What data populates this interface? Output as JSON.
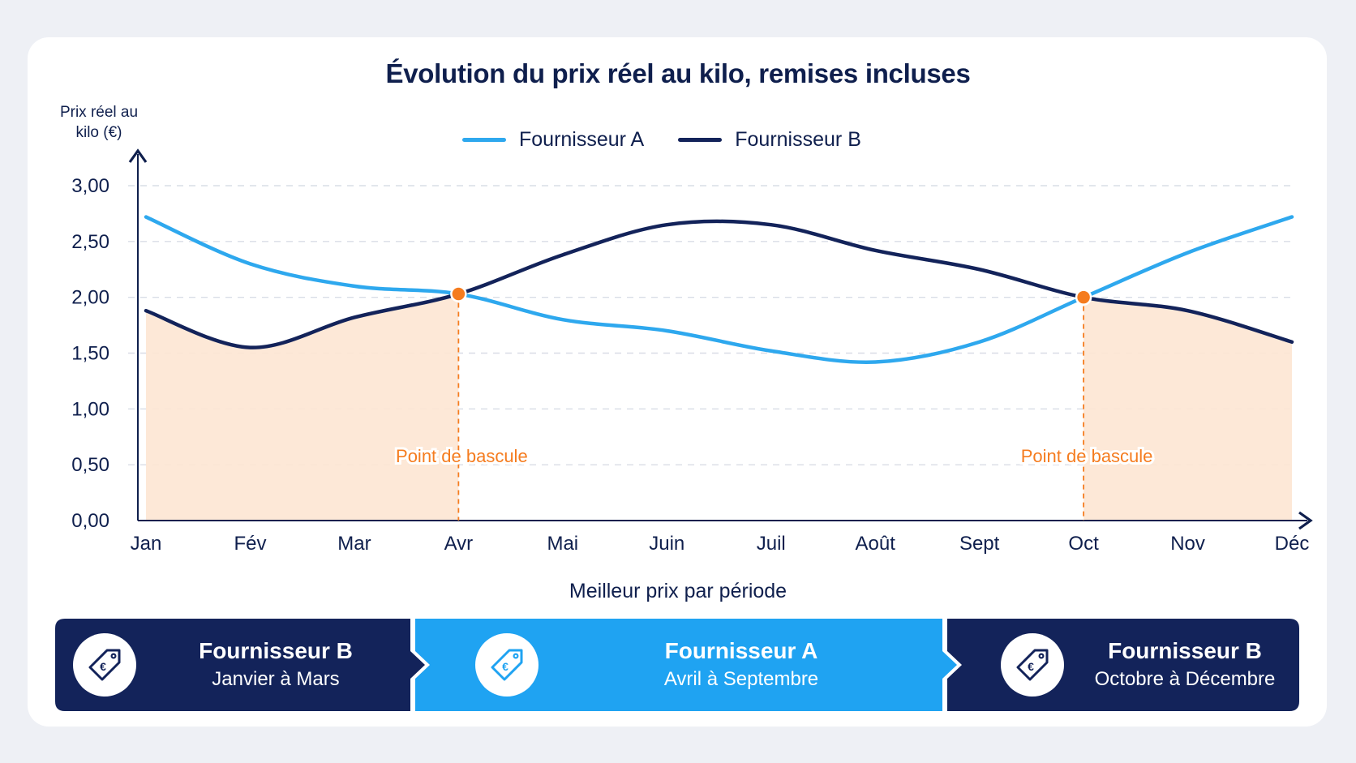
{
  "colors": {
    "supplier_a": "#2ea8ee",
    "supplier_b": "#13235a",
    "highlight": "#f57c1f",
    "fill": "#fde5d3",
    "grid": "#d9dde6"
  },
  "chart_data": {
    "type": "line",
    "title": "Évolution du prix réel au kilo, remises incluses",
    "ylabel": "Prix réel au kilo (€)",
    "xlabel": "",
    "categories": [
      "Jan",
      "Fév",
      "Mar",
      "Avr",
      "Mai",
      "Juin",
      "Juil",
      "Août",
      "Sept",
      "Oct",
      "Nov",
      "Déc"
    ],
    "y_ticks": [
      "0,00",
      "0,50",
      "1,00",
      "1,50",
      "2,00",
      "2,50",
      "3,00"
    ],
    "ylim": [
      0,
      3
    ],
    "grid": true,
    "legend_position": "top",
    "series": [
      {
        "name": "Fournisseur A",
        "values": [
          2.72,
          2.3,
          2.1,
          2.03,
          1.8,
          1.7,
          1.52,
          1.42,
          1.6,
          2.0,
          2.4,
          2.72
        ]
      },
      {
        "name": "Fournisseur B",
        "values": [
          1.88,
          1.55,
          1.82,
          2.03,
          2.38,
          2.65,
          2.65,
          2.42,
          2.25,
          2.0,
          1.88,
          1.6
        ]
      }
    ],
    "crossovers": [
      {
        "x": "Avr",
        "y": 2.03,
        "label": "Point de bascule"
      },
      {
        "x": "Oct",
        "y": 2.0,
        "label": "Point de bascule"
      }
    ],
    "shaded_ranges": [
      {
        "from": "Jan",
        "to": "Avr",
        "series": "Fournisseur B"
      },
      {
        "from": "Oct",
        "to": "Déc",
        "series": "Fournisseur B"
      }
    ]
  },
  "summary": {
    "title": "Meilleur prix par période",
    "segments": [
      {
        "supplier": "Fournisseur B",
        "period": "Janvier à Mars",
        "icon": "euro-tag-icon"
      },
      {
        "supplier": "Fournisseur A",
        "period": "Avril à Septembre",
        "icon": "euro-tag-icon"
      },
      {
        "supplier": "Fournisseur B",
        "period": "Octobre à Décembre",
        "icon": "euro-tag-icon"
      }
    ]
  }
}
